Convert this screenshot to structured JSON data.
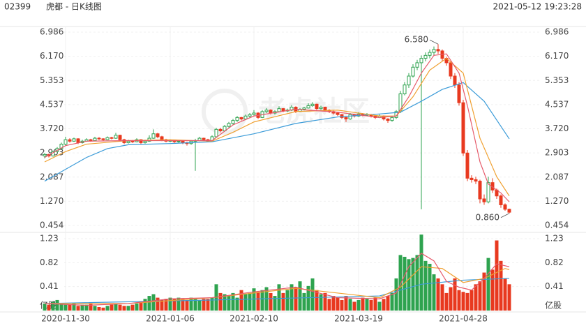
{
  "header": {
    "code": "02399",
    "title": "虎都 - 日K线图",
    "timestamp": "2021-05-12 19:23:28"
  },
  "watermark": "老虎社区",
  "chart_data": [
    {
      "type": "candlestick",
      "up_color": "#2ea34f",
      "down_color": "#e8391f",
      "categories": [
        null,
        null,
        null,
        null,
        null,
        "2020-11-30",
        null,
        null,
        null,
        null,
        null,
        null,
        null,
        null,
        null,
        null,
        null,
        null,
        null,
        null,
        null,
        null,
        null,
        null,
        null,
        null,
        null,
        null,
        null,
        null,
        "2021-01-06",
        null,
        null,
        null,
        null,
        null,
        null,
        null,
        null,
        null,
        null,
        null,
        null,
        null,
        null,
        null,
        null,
        null,
        null,
        null,
        "2021-02-10",
        null,
        null,
        null,
        null,
        null,
        null,
        null,
        null,
        null,
        null,
        null,
        null,
        null,
        null,
        null,
        null,
        null,
        null,
        null,
        null,
        null,
        null,
        null,
        null,
        "2021-03-19",
        null,
        null,
        null,
        null,
        null,
        null,
        null,
        null,
        null,
        null,
        null,
        null,
        null,
        null,
        null,
        null,
        null,
        null,
        null,
        null,
        null,
        null,
        null,
        null,
        "2021-04-28",
        null,
        null,
        null,
        null,
        null,
        null,
        null,
        null,
        null,
        null,
        null
      ],
      "candles": [
        [
          2.8,
          2.9,
          2.72,
          2.85
        ],
        [
          2.85,
          2.88,
          2.75,
          2.8
        ],
        [
          2.8,
          2.98,
          2.78,
          2.95
        ],
        [
          2.95,
          3.1,
          2.9,
          3.05
        ],
        [
          3.05,
          3.25,
          3.0,
          3.2
        ],
        [
          3.2,
          3.45,
          3.15,
          3.35
        ],
        [
          3.35,
          3.4,
          3.25,
          3.3
        ],
        [
          3.3,
          3.42,
          3.28,
          3.38
        ],
        [
          3.38,
          3.4,
          3.2,
          3.25
        ],
        [
          3.25,
          3.35,
          3.22,
          3.3
        ],
        [
          3.3,
          3.4,
          3.28,
          3.35
        ],
        [
          3.35,
          3.38,
          3.28,
          3.32
        ],
        [
          3.32,
          3.45,
          3.3,
          3.4
        ],
        [
          3.4,
          3.44,
          3.34,
          3.38
        ],
        [
          3.38,
          3.4,
          3.3,
          3.35
        ],
        [
          3.35,
          3.46,
          3.33,
          3.42
        ],
        [
          3.42,
          3.45,
          3.36,
          3.4
        ],
        [
          3.4,
          3.58,
          3.38,
          3.5
        ],
        [
          3.5,
          3.52,
          3.3,
          3.35
        ],
        [
          3.35,
          3.38,
          3.2,
          3.25
        ],
        [
          3.25,
          3.35,
          3.22,
          3.3
        ],
        [
          3.3,
          3.34,
          3.24,
          3.28
        ],
        [
          3.28,
          3.4,
          3.26,
          3.35
        ],
        [
          3.35,
          3.37,
          3.2,
          3.25
        ],
        [
          3.25,
          3.35,
          3.22,
          3.3
        ],
        [
          3.3,
          3.5,
          3.28,
          3.4
        ],
        [
          3.4,
          3.7,
          3.38,
          3.55
        ],
        [
          3.55,
          3.58,
          3.4,
          3.45
        ],
        [
          3.45,
          3.48,
          3.3,
          3.35
        ],
        [
          3.35,
          3.38,
          3.26,
          3.3
        ],
        [
          3.3,
          3.36,
          3.27,
          3.32
        ],
        [
          3.32,
          3.34,
          3.24,
          3.28
        ],
        [
          3.28,
          3.34,
          3.25,
          3.3
        ],
        [
          3.3,
          3.32,
          3.2,
          3.25
        ],
        [
          3.25,
          3.28,
          3.15,
          3.22
        ],
        [
          3.22,
          3.34,
          3.18,
          3.3
        ],
        [
          3.3,
          3.38,
          2.3,
          3.32
        ],
        [
          3.32,
          3.45,
          3.3,
          3.4
        ],
        [
          3.4,
          3.42,
          3.3,
          3.35
        ],
        [
          3.35,
          3.38,
          3.26,
          3.3
        ],
        [
          3.3,
          3.5,
          3.28,
          3.45
        ],
        [
          3.45,
          3.75,
          3.42,
          3.7
        ],
        [
          3.7,
          3.75,
          3.6,
          3.65
        ],
        [
          3.65,
          3.85,
          3.62,
          3.8
        ],
        [
          3.8,
          3.95,
          3.76,
          3.9
        ],
        [
          3.9,
          4.05,
          3.85,
          4.0
        ],
        [
          4.0,
          4.15,
          3.95,
          4.1
        ],
        [
          4.1,
          4.12,
          4.0,
          4.05
        ],
        [
          4.05,
          4.2,
          4.02,
          4.15
        ],
        [
          4.15,
          4.25,
          4.1,
          4.2
        ],
        [
          4.2,
          4.35,
          4.15,
          4.25
        ],
        [
          4.25,
          4.28,
          4.05,
          4.1
        ],
        [
          4.1,
          4.35,
          4.08,
          4.3
        ],
        [
          4.3,
          4.42,
          4.25,
          4.35
        ],
        [
          4.35,
          4.38,
          4.2,
          4.25
        ],
        [
          4.25,
          4.35,
          4.2,
          4.3
        ],
        [
          4.3,
          4.48,
          4.28,
          4.4
        ],
        [
          4.4,
          4.42,
          4.28,
          4.32
        ],
        [
          4.32,
          4.4,
          4.28,
          4.35
        ],
        [
          4.35,
          4.52,
          4.32,
          4.45
        ],
        [
          4.45,
          4.48,
          4.25,
          4.3
        ],
        [
          4.3,
          4.42,
          4.28,
          4.38
        ],
        [
          4.38,
          4.46,
          4.34,
          4.42
        ],
        [
          4.42,
          4.58,
          4.4,
          4.5
        ],
        [
          4.5,
          4.62,
          4.46,
          4.55
        ],
        [
          4.55,
          4.57,
          4.35,
          4.4
        ],
        [
          4.4,
          4.5,
          4.36,
          4.45
        ],
        [
          4.45,
          4.47,
          4.3,
          4.35
        ],
        [
          4.35,
          4.38,
          4.25,
          4.3
        ],
        [
          4.3,
          4.33,
          4.2,
          4.25
        ],
        [
          4.25,
          4.28,
          4.15,
          4.2
        ],
        [
          4.2,
          4.22,
          4.05,
          4.1
        ],
        [
          4.1,
          4.12,
          3.95,
          4.05
        ],
        [
          4.05,
          4.25,
          4.02,
          4.2
        ],
        [
          4.2,
          4.22,
          4.1,
          4.15
        ],
        [
          4.15,
          4.28,
          4.12,
          4.22
        ],
        [
          4.22,
          4.25,
          4.14,
          4.18
        ],
        [
          4.18,
          4.25,
          4.15,
          4.2
        ],
        [
          4.2,
          4.22,
          4.1,
          4.15
        ],
        [
          4.15,
          4.18,
          4.05,
          4.1
        ],
        [
          4.1,
          4.2,
          4.08,
          4.15
        ],
        [
          4.15,
          4.17,
          4.0,
          4.05
        ],
        [
          4.05,
          4.08,
          3.92,
          4.0
        ],
        [
          4.0,
          4.15,
          3.96,
          4.1
        ],
        [
          4.1,
          4.35,
          4.05,
          4.3
        ],
        [
          4.3,
          5.0,
          4.25,
          4.9
        ],
        [
          4.9,
          5.3,
          4.85,
          5.2
        ],
        [
          5.2,
          5.6,
          5.1,
          5.5
        ],
        [
          5.5,
          5.9,
          5.45,
          5.8
        ],
        [
          5.8,
          6.05,
          5.7,
          5.95
        ],
        [
          5.95,
          6.2,
          1.0,
          6.1
        ],
        [
          6.1,
          6.3,
          6.0,
          6.2
        ],
        [
          6.2,
          6.4,
          6.1,
          6.3
        ],
        [
          6.3,
          6.5,
          6.2,
          6.4
        ],
        [
          6.4,
          6.58,
          6.25,
          6.35
        ],
        [
          6.35,
          6.4,
          6.0,
          6.1
        ],
        [
          6.1,
          6.15,
          5.85,
          5.95
        ],
        [
          5.95,
          6.0,
          5.4,
          5.5
        ],
        [
          5.5,
          5.6,
          5.1,
          5.2
        ],
        [
          5.2,
          5.3,
          4.5,
          4.6
        ],
        [
          4.6,
          4.7,
          2.8,
          2.9
        ],
        [
          2.9,
          3.0,
          1.95,
          2.05
        ],
        [
          2.05,
          2.15,
          1.9,
          2.0
        ],
        [
          2.0,
          2.1,
          1.85,
          1.95
        ],
        [
          1.95,
          2.0,
          1.2,
          1.35
        ],
        [
          1.35,
          1.5,
          1.15,
          1.25
        ],
        [
          1.25,
          2.1,
          1.2,
          1.9
        ],
        [
          1.9,
          2.05,
          1.55,
          1.65
        ],
        [
          1.65,
          1.7,
          1.35,
          1.45
        ],
        [
          1.45,
          1.5,
          1.05,
          1.15
        ],
        [
          1.15,
          1.2,
          0.95,
          1.0
        ],
        [
          1.0,
          1.02,
          0.86,
          0.9
        ]
      ],
      "ylim": [
        0.454,
        6.986
      ],
      "yticks": [
        6.986,
        {
          "value": 6.17,
          "label": "6.170"
        },
        5.353,
        4.537,
        {
          "value": 3.72,
          "label": "3.720"
        },
        2.903,
        2.087,
        {
          "value": 1.27,
          "label": "1.270"
        },
        0.454
      ],
      "annotations": [
        {
          "index": 94,
          "value": 6.58,
          "label": "6.580"
        },
        {
          "index": 111,
          "value": 0.86,
          "label": "0.860"
        }
      ],
      "series": [
        {
          "color": "#3b9bd8",
          "x": [
            0,
            5,
            10,
            15,
            20,
            30,
            40,
            50,
            60,
            70,
            80,
            85,
            90,
            95,
            100,
            105,
            111
          ],
          "values": [
            1.95,
            2.35,
            2.75,
            3.05,
            3.18,
            3.22,
            3.28,
            3.55,
            3.9,
            4.12,
            4.22,
            4.28,
            4.65,
            5.05,
            5.28,
            4.65,
            3.38
          ]
        },
        {
          "color": "#f0a030",
          "x": [
            0,
            5,
            10,
            20,
            30,
            40,
            45,
            50,
            60,
            70,
            80,
            84,
            88,
            92,
            96,
            100,
            104,
            108,
            111
          ],
          "values": [
            2.6,
            2.95,
            3.2,
            3.32,
            3.35,
            3.3,
            3.6,
            3.95,
            4.3,
            4.35,
            4.15,
            4.15,
            4.8,
            5.7,
            6.1,
            5.6,
            3.4,
            2.1,
            1.45
          ]
        },
        {
          "color": "#e65a6a",
          "x": [
            0,
            5,
            10,
            20,
            30,
            40,
            45,
            50,
            60,
            70,
            80,
            84,
            87,
            90,
            93,
            96,
            99,
            101,
            104,
            106,
            109,
            111
          ],
          "values": [
            2.75,
            3.15,
            3.3,
            3.32,
            3.32,
            3.32,
            3.85,
            4.15,
            4.38,
            4.28,
            4.1,
            4.15,
            4.8,
            5.6,
            6.2,
            6.25,
            5.6,
            4.5,
            2.6,
            1.85,
            1.55,
            1.25
          ]
        }
      ]
    },
    {
      "type": "bar",
      "values": [
        0.12,
        0.1,
        0.15,
        0.18,
        0.12,
        0.1,
        0.1,
        0.12,
        0.08,
        0.1,
        0.1,
        0.12,
        0.08,
        0.06,
        0.05,
        0.08,
        0.1,
        0.12,
        0.1,
        0.08,
        0.08,
        0.1,
        0.12,
        0.15,
        0.2,
        0.25,
        0.28,
        0.22,
        0.18,
        0.2,
        0.22,
        0.2,
        0.22,
        0.2,
        0.18,
        0.22,
        0.2,
        0.18,
        0.2,
        0.2,
        0.22,
        0.45,
        0.3,
        0.28,
        0.25,
        0.3,
        0.22,
        0.35,
        0.28,
        0.3,
        0.38,
        0.32,
        0.35,
        0.4,
        0.3,
        0.25,
        0.45,
        0.3,
        0.35,
        0.45,
        0.4,
        0.5,
        0.3,
        0.42,
        0.55,
        0.35,
        0.28,
        0.3,
        0.2,
        0.25,
        0.22,
        0.18,
        0.25,
        0.2,
        0.15,
        0.18,
        0.22,
        0.2,
        0.18,
        0.22,
        0.15,
        0.2,
        0.25,
        0.3,
        0.55,
        0.95,
        0.92,
        0.88,
        0.9,
        0.95,
        1.3,
        0.85,
        0.8,
        0.62,
        0.55,
        0.45,
        0.3,
        0.4,
        0.55,
        0.35,
        0.32,
        0.3,
        0.35,
        0.45,
        0.5,
        0.65,
        0.9,
        0.7,
        1.2,
        0.85,
        0.55,
        0.45
      ],
      "ylim": [
        0,
        1.23
      ],
      "yticks": [
        1.23,
        0.82,
        0.41
      ],
      "unit_label": "亿股",
      "series": [
        {
          "color": "#3b9bd8",
          "x": [
            0,
            40,
            80,
            90,
            100,
            111
          ],
          "values": [
            0.12,
            0.18,
            0.25,
            0.45,
            0.52,
            0.55
          ]
        },
        {
          "color": "#f0a030",
          "x": [
            0,
            20,
            40,
            60,
            80,
            85,
            90,
            95,
            100,
            105,
            110,
            111
          ],
          "values": [
            0.12,
            0.12,
            0.22,
            0.38,
            0.22,
            0.4,
            0.75,
            0.72,
            0.48,
            0.55,
            0.72,
            0.7
          ]
        },
        {
          "color": "#e65a6a",
          "x": [
            0,
            10,
            20,
            30,
            40,
            50,
            60,
            70,
            80,
            84,
            87,
            90,
            93,
            96,
            99,
            102,
            105,
            108,
            111
          ],
          "values": [
            0.12,
            0.09,
            0.12,
            0.2,
            0.22,
            0.32,
            0.4,
            0.22,
            0.2,
            0.3,
            0.75,
            0.98,
            0.85,
            0.5,
            0.4,
            0.35,
            0.55,
            0.8,
            0.75
          ]
        }
      ]
    }
  ]
}
